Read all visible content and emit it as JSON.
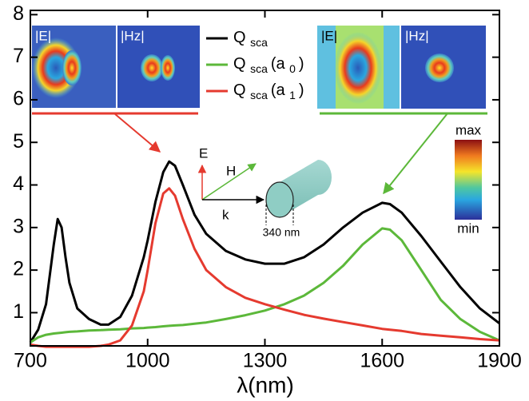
{
  "chart_data": {
    "type": "line",
    "x_label": "λ(nm)",
    "x": [
      700,
      720,
      740,
      760,
      770,
      780,
      790,
      800,
      820,
      850,
      880,
      900,
      930,
      960,
      990,
      1000,
      1020,
      1040,
      1055,
      1070,
      1090,
      1120,
      1150,
      1200,
      1250,
      1300,
      1350,
      1400,
      1450,
      1500,
      1550,
      1600,
      1620,
      1650,
      1700,
      1750,
      1800,
      1850,
      1900
    ],
    "series": [
      {
        "name": "Q sca",
        "color": "#000000",
        "values": [
          0.3,
          0.6,
          1.2,
          2.6,
          3.2,
          3.0,
          2.3,
          1.7,
          1.1,
          0.85,
          0.72,
          0.72,
          0.9,
          1.4,
          2.3,
          2.7,
          3.6,
          4.3,
          4.55,
          4.45,
          4.0,
          3.3,
          2.85,
          2.45,
          2.25,
          2.15,
          2.15,
          2.3,
          2.6,
          3.0,
          3.35,
          3.58,
          3.55,
          3.35,
          2.8,
          2.2,
          1.6,
          1.1,
          0.75
        ]
      },
      {
        "name": "Q sca (a 0 )",
        "color": "#5cb83a",
        "values": [
          0.3,
          0.42,
          0.48,
          0.51,
          0.52,
          0.53,
          0.54,
          0.55,
          0.56,
          0.58,
          0.59,
          0.6,
          0.61,
          0.63,
          0.64,
          0.65,
          0.66,
          0.68,
          0.69,
          0.7,
          0.71,
          0.74,
          0.77,
          0.85,
          0.94,
          1.05,
          1.2,
          1.4,
          1.7,
          2.1,
          2.6,
          2.98,
          2.95,
          2.7,
          2.0,
          1.3,
          0.85,
          0.55,
          0.35
        ]
      },
      {
        "name": "Q sca (a 1 )",
        "color": "#e53a2f",
        "values": [
          0.25,
          0.22,
          0.2,
          0.2,
          0.2,
          0.2,
          0.2,
          0.2,
          0.2,
          0.2,
          0.22,
          0.25,
          0.35,
          0.7,
          1.5,
          2.0,
          3.1,
          3.8,
          3.92,
          3.75,
          3.2,
          2.5,
          2.0,
          1.6,
          1.35,
          1.2,
          1.07,
          0.95,
          0.86,
          0.78,
          0.7,
          0.62,
          0.6,
          0.57,
          0.5,
          0.46,
          0.42,
          0.38,
          0.35
        ]
      }
    ],
    "xlim": [
      700,
      1900
    ],
    "xticks": [
      700,
      1000,
      1300,
      1600,
      1900
    ],
    "ylim": [
      0.22,
      8.1
    ],
    "yticks": [
      1,
      2,
      3,
      4,
      5,
      6,
      7,
      8
    ],
    "annotations": {
      "inset_left_e": "|E|",
      "inset_left_h": "|Hz|",
      "inset_right_e": "|E|",
      "inset_right_h": "|Hz|",
      "colorbar_max": "max",
      "colorbar_min": "min",
      "e_field": "E",
      "h_field": "H",
      "k_vector": "k",
      "diameter": "340 nm"
    }
  }
}
